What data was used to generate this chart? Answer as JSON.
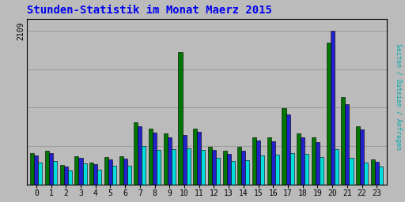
{
  "title": "Stunden-Statistik im Monat Maerz 2015",
  "ylabel": "Seiten / Dateien / Anfragen",
  "ymax": 2109,
  "hours": [
    0,
    1,
    2,
    3,
    4,
    5,
    6,
    7,
    8,
    9,
    10,
    11,
    12,
    13,
    14,
    15,
    16,
    17,
    18,
    19,
    20,
    21,
    22,
    23
  ],
  "seiten": [
    430,
    460,
    270,
    390,
    300,
    370,
    380,
    850,
    760,
    700,
    1820,
    760,
    510,
    460,
    510,
    650,
    650,
    1050,
    700,
    640,
    1950,
    1200,
    800,
    340
  ],
  "dateien": [
    400,
    430,
    240,
    360,
    275,
    345,
    350,
    800,
    710,
    640,
    680,
    720,
    470,
    420,
    460,
    600,
    590,
    960,
    640,
    580,
    2109,
    1100,
    750,
    305
  ],
  "anfragen": [
    300,
    315,
    185,
    285,
    205,
    260,
    255,
    530,
    470,
    480,
    490,
    470,
    365,
    320,
    335,
    400,
    405,
    430,
    420,
    375,
    480,
    360,
    300,
    240
  ],
  "color_seiten": "#007700",
  "color_dateien": "#2222CC",
  "color_anfragen": "#00DDDD",
  "bg_color": "#BBBBBB",
  "title_color": "#0000EE",
  "ylabel_color": "#00AAAA",
  "grid_color": "#999999",
  "title_fontsize": 10,
  "tick_fontsize": 7,
  "bar_width": 0.27
}
